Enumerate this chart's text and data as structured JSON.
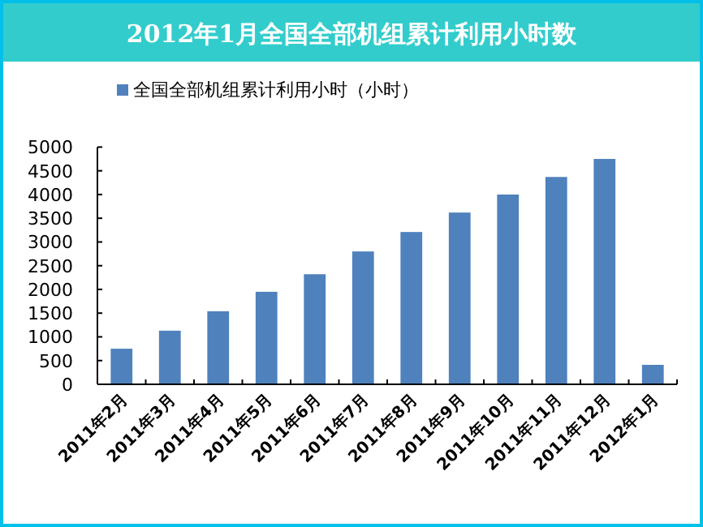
{
  "chart_data": {
    "type": "bar",
    "title": "2012年1月全国全部机组累计利用小时数",
    "categories": [
      "2011年2月",
      "2011年3月",
      "2011年4月",
      "2011年5月",
      "2011年6月",
      "2011年7月",
      "2011年8月",
      "2011年9月",
      "2011年10月",
      "2011年11月",
      "2011年12月",
      "2012年1月"
    ],
    "series": [
      {
        "name": "全国全部机组累计利用小时（小时）",
        "color": "#4f81bd",
        "values": [
          750,
          1130,
          1540,
          1950,
          2320,
          2800,
          3210,
          3620,
          4000,
          4370,
          4750,
          410
        ]
      }
    ],
    "ylim": [
      0,
      5000
    ],
    "yticks": [
      0,
      500,
      1000,
      1500,
      2000,
      2500,
      3000,
      3500,
      4000,
      4500,
      5000
    ],
    "grid": false,
    "legend": "top"
  }
}
